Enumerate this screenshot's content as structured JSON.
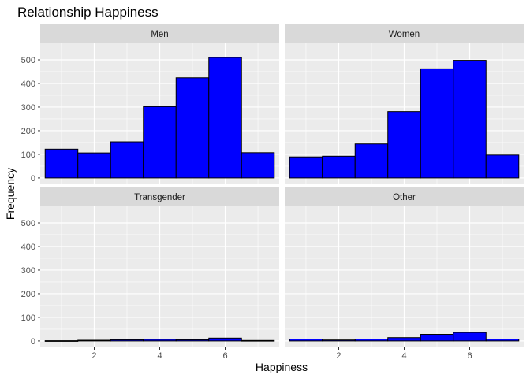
{
  "chart_data": {
    "type": "bar",
    "subtype": "faceted-histogram",
    "title": "Relationship Happiness",
    "xlabel": "Happiness",
    "ylabel": "Frequency",
    "xlim": [
      0.35,
      7.65
    ],
    "ylim": [
      -27,
      570
    ],
    "x_ticks": [
      2,
      4,
      6
    ],
    "y_ticks": [
      0,
      100,
      200,
      300,
      400,
      500
    ],
    "bins": [
      [
        0.5,
        1.5
      ],
      [
        1.5,
        2.5
      ],
      [
        2.5,
        3.5
      ],
      [
        3.5,
        4.5
      ],
      [
        4.5,
        5.5
      ],
      [
        5.5,
        6.5
      ],
      [
        6.5,
        7.5
      ]
    ],
    "fill_color": "#0000ff",
    "outline_color": "#000000",
    "panel_background": "#ebebeb",
    "strip_background": "#d9d9d9",
    "grid": true,
    "facets": [
      {
        "label": "Men",
        "values": [
          122,
          106,
          153,
          302,
          424,
          510,
          107
        ]
      },
      {
        "label": "Women",
        "values": [
          89,
          92,
          144,
          281,
          462,
          498,
          97
        ]
      },
      {
        "label": "Transgender",
        "values": [
          1,
          3,
          5,
          7,
          5,
          12,
          2
        ]
      },
      {
        "label": "Other",
        "values": [
          8,
          4,
          8,
          14,
          28,
          36,
          8
        ]
      }
    ]
  }
}
